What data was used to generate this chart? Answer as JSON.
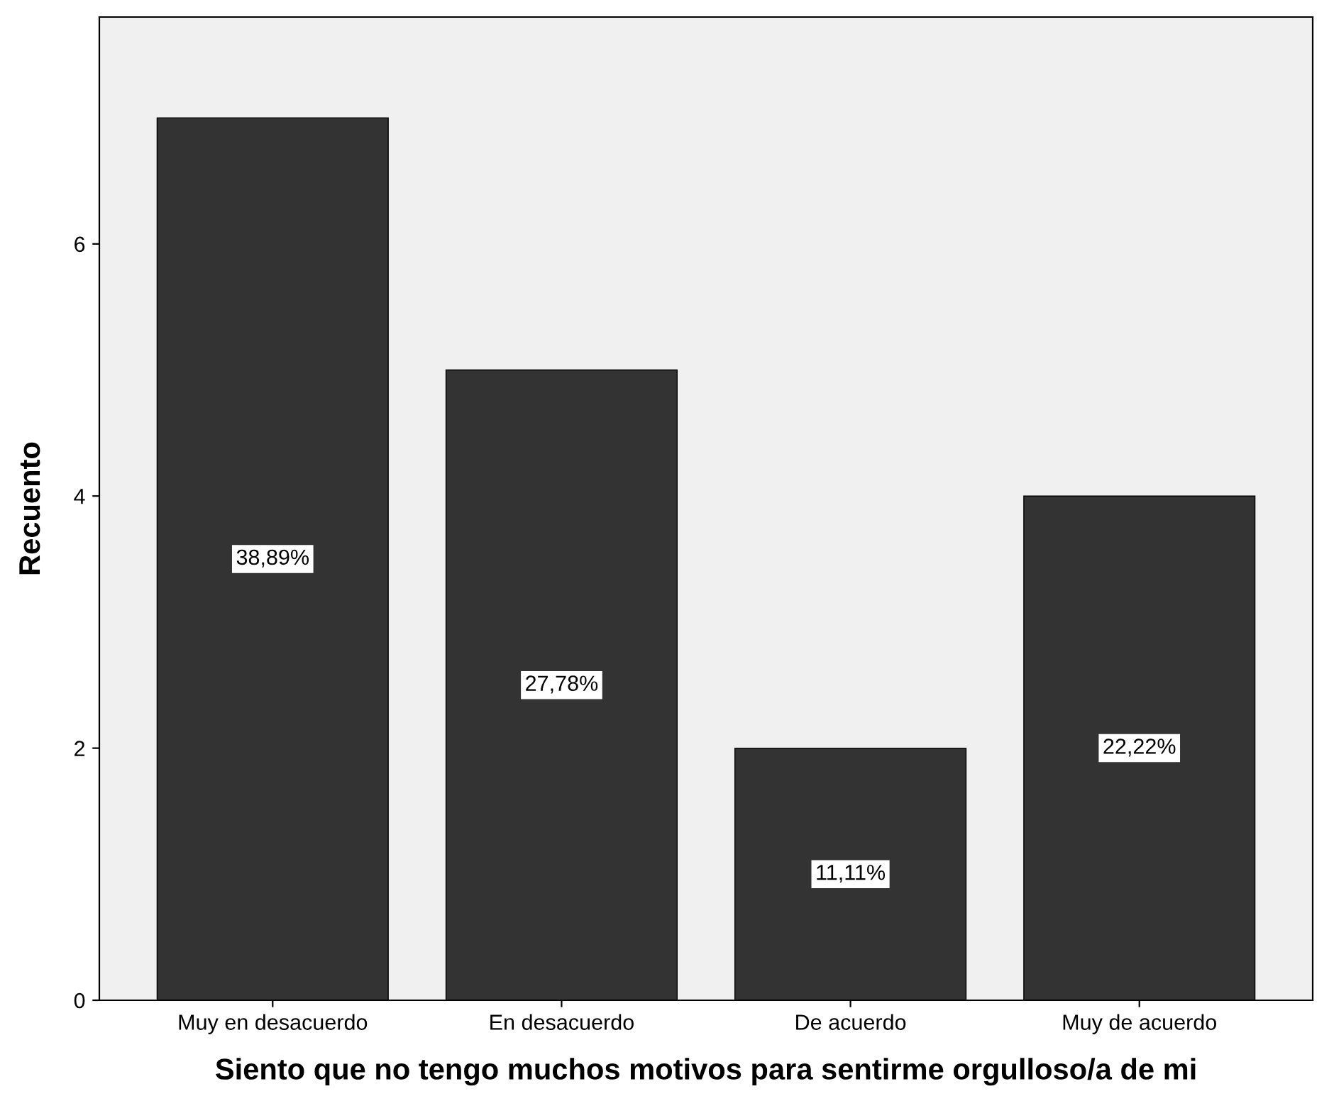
{
  "chart_data": {
    "type": "bar",
    "xlabel": "Siento que no tengo muchos motivos para sentirme orgulloso/a de mi",
    "ylabel": "Recuento",
    "categories": [
      "Muy en desacuerdo",
      "En desacuerdo",
      "De acuerdo",
      "Muy de acuerdo"
    ],
    "values": [
      7,
      5,
      2,
      4
    ],
    "color": "#333333",
    "annotations": [
      "38,89%",
      "27,78%",
      "11,11%",
      "22,22%"
    ],
    "ylim": [
      0,
      7.8
    ],
    "yticks": [
      0,
      2,
      4,
      6
    ],
    "grid": false
  }
}
